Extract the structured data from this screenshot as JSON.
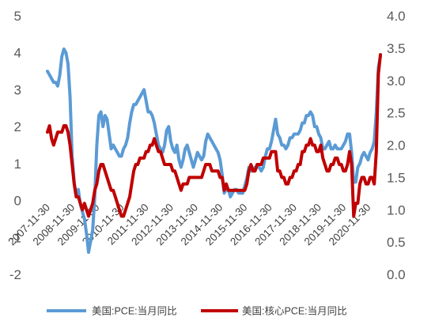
{
  "chart_data": {
    "type": "line",
    "x": [
      "2007-11-30",
      "2007-12-31",
      "2008-01-31",
      "2008-02-29",
      "2008-03-31",
      "2008-04-30",
      "2008-05-31",
      "2008-06-30",
      "2008-07-31",
      "2008-08-31",
      "2008-09-30",
      "2008-10-31",
      "2008-11-30",
      "2008-12-31",
      "2009-01-31",
      "2009-02-28",
      "2009-03-31",
      "2009-04-30",
      "2009-05-31",
      "2009-06-30",
      "2009-07-31",
      "2009-08-31",
      "2009-09-30",
      "2009-10-31",
      "2009-11-30",
      "2009-12-31",
      "2010-01-31",
      "2010-02-28",
      "2010-03-31",
      "2010-04-30",
      "2010-05-31",
      "2010-06-30",
      "2010-07-31",
      "2010-08-31",
      "2010-09-30",
      "2010-10-31",
      "2010-11-30",
      "2010-12-31",
      "2011-01-31",
      "2011-02-28",
      "2011-03-31",
      "2011-04-30",
      "2011-05-31",
      "2011-06-30",
      "2011-07-31",
      "2011-08-31",
      "2011-09-30",
      "2011-10-31",
      "2011-11-30",
      "2011-12-31",
      "2012-01-31",
      "2012-02-29",
      "2012-03-31",
      "2012-04-30",
      "2012-05-31",
      "2012-06-30",
      "2012-07-31",
      "2012-08-31",
      "2012-09-30",
      "2012-10-31",
      "2012-11-30",
      "2012-12-31",
      "2013-01-31",
      "2013-02-28",
      "2013-03-31",
      "2013-04-30",
      "2013-05-31",
      "2013-06-30",
      "2013-07-31",
      "2013-08-31",
      "2013-09-30",
      "2013-10-31",
      "2013-11-30",
      "2013-12-31",
      "2014-01-31",
      "2014-02-28",
      "2014-03-31",
      "2014-04-30",
      "2014-05-31",
      "2014-06-30",
      "2014-07-31",
      "2014-08-31",
      "2014-09-30",
      "2014-10-31",
      "2014-11-30",
      "2014-12-31",
      "2015-01-31",
      "2015-02-28",
      "2015-03-31",
      "2015-04-30",
      "2015-05-31",
      "2015-06-30",
      "2015-07-31",
      "2015-08-31",
      "2015-09-30",
      "2015-10-31",
      "2015-11-30",
      "2015-12-31",
      "2016-01-31",
      "2016-02-29",
      "2016-03-31",
      "2016-04-30",
      "2016-05-31",
      "2016-06-30",
      "2016-07-31",
      "2016-08-31",
      "2016-09-30",
      "2016-10-31",
      "2016-11-30",
      "2016-12-31",
      "2017-01-31",
      "2017-02-28",
      "2017-03-31",
      "2017-04-30",
      "2017-05-31",
      "2017-06-30",
      "2017-07-31",
      "2017-08-31",
      "2017-09-30",
      "2017-10-31",
      "2017-11-30",
      "2017-12-31",
      "2018-01-31",
      "2018-02-28",
      "2018-03-31",
      "2018-04-30",
      "2018-05-31",
      "2018-06-30",
      "2018-07-31",
      "2018-08-31",
      "2018-09-30",
      "2018-10-31",
      "2018-11-30",
      "2018-12-31",
      "2019-01-31",
      "2019-02-28",
      "2019-03-31",
      "2019-04-30",
      "2019-05-31",
      "2019-06-30",
      "2019-07-31",
      "2019-08-31",
      "2019-09-30",
      "2019-10-31",
      "2019-11-30",
      "2019-12-31",
      "2020-01-31",
      "2020-02-29",
      "2020-03-31",
      "2020-04-30",
      "2020-05-31",
      "2020-06-30",
      "2020-07-31",
      "2020-08-31",
      "2020-09-30",
      "2020-10-31",
      "2020-11-30",
      "2020-12-31",
      "2021-01-31",
      "2021-02-28",
      "2021-03-31",
      "2021-04-30",
      "2021-05-31"
    ],
    "x_tick_labels": [
      "2007-11-30",
      "2008-11-30",
      "2009-11-30",
      "2010-11-30",
      "2011-11-30",
      "2012-11-30",
      "2013-11-30",
      "2014-11-30",
      "2015-11-30",
      "2016-11-30",
      "2017-11-30",
      "2018-11-30",
      "2019-11-30",
      "2020-11-30"
    ],
    "series": [
      {
        "name": "美国:PCE:当月同比",
        "axis": "left",
        "color": "#5B9BD5",
        "values": [
          3.5,
          3.4,
          3.3,
          3.2,
          3.2,
          3.1,
          3.4,
          3.9,
          4.1,
          4.0,
          3.7,
          2.8,
          1.2,
          0.5,
          0.1,
          0.3,
          -0.1,
          -0.3,
          -0.5,
          -0.9,
          -1.4,
          -1.1,
          -0.8,
          0.1,
          1.5,
          2.3,
          2.4,
          2.0,
          2.3,
          2.2,
          1.8,
          1.4,
          1.5,
          1.4,
          1.3,
          1.2,
          1.2,
          1.4,
          1.5,
          1.7,
          2.1,
          2.4,
          2.6,
          2.6,
          2.7,
          2.8,
          2.9,
          3.0,
          2.7,
          2.4,
          2.4,
          2.3,
          2.1,
          1.8,
          1.5,
          1.4,
          1.3,
          1.5,
          1.9,
          2.0,
          1.6,
          1.4,
          1.3,
          1.5,
          1.1,
          0.9,
          1.1,
          1.4,
          1.5,
          1.3,
          1.1,
          0.9,
          1.1,
          1.3,
          1.2,
          1.1,
          1.2,
          1.6,
          1.8,
          1.7,
          1.6,
          1.5,
          1.4,
          1.3,
          1.1,
          0.7,
          0.2,
          0.3,
          0.3,
          0.1,
          0.2,
          0.3,
          0.3,
          0.2,
          0.2,
          0.2,
          0.4,
          0.6,
          0.9,
          0.8,
          0.8,
          0.9,
          0.9,
          0.9,
          0.8,
          0.9,
          1.2,
          1.4,
          1.4,
          1.6,
          1.9,
          2.2,
          1.8,
          1.7,
          1.5,
          1.5,
          1.4,
          1.5,
          1.7,
          1.7,
          1.8,
          1.8,
          1.8,
          1.9,
          2.1,
          2.1,
          2.3,
          2.3,
          2.4,
          2.3,
          2.0,
          2.0,
          1.8,
          1.7,
          1.4,
          1.4,
          1.5,
          1.6,
          1.4,
          1.4,
          1.5,
          1.4,
          1.4,
          1.4,
          1.5,
          1.6,
          1.8,
          1.8,
          1.3,
          0.5,
          0.5,
          0.9,
          1.0,
          1.2,
          1.3,
          1.2,
          1.1,
          1.3,
          1.4,
          1.6,
          2.4,
          3.6,
          3.9
        ]
      },
      {
        "name": "美国:核心PCE:当月同比",
        "axis": "right",
        "color": "#C00000",
        "values": [
          2.2,
          2.3,
          2.1,
          2.0,
          2.1,
          2.2,
          2.2,
          2.2,
          2.3,
          2.3,
          2.2,
          2.0,
          1.7,
          1.4,
          1.2,
          1.2,
          1.1,
          1.0,
          1.1,
          1.0,
          0.9,
          1.0,
          1.1,
          1.3,
          1.4,
          1.6,
          1.7,
          1.7,
          1.6,
          1.5,
          1.4,
          1.3,
          1.3,
          1.2,
          1.1,
          1.0,
          0.9,
          0.9,
          1.0,
          1.1,
          1.2,
          1.4,
          1.6,
          1.7,
          1.7,
          1.8,
          1.8,
          1.8,
          1.9,
          1.9,
          2.0,
          2.0,
          2.1,
          2.0,
          1.9,
          1.9,
          1.8,
          1.7,
          1.7,
          1.7,
          1.7,
          1.6,
          1.6,
          1.5,
          1.4,
          1.3,
          1.4,
          1.4,
          1.4,
          1.5,
          1.5,
          1.5,
          1.5,
          1.5,
          1.5,
          1.5,
          1.6,
          1.7,
          1.7,
          1.7,
          1.6,
          1.6,
          1.6,
          1.6,
          1.5,
          1.5,
          1.3,
          1.4,
          1.3,
          1.3,
          1.3,
          1.3,
          1.3,
          1.3,
          1.3,
          1.3,
          1.3,
          1.4,
          1.6,
          1.7,
          1.6,
          1.6,
          1.7,
          1.7,
          1.7,
          1.8,
          1.8,
          1.8,
          1.8,
          1.9,
          1.9,
          1.9,
          1.6,
          1.6,
          1.5,
          1.5,
          1.4,
          1.4,
          1.5,
          1.5,
          1.6,
          1.6,
          1.7,
          1.7,
          1.9,
          1.9,
          2.0,
          2.0,
          2.1,
          2.0,
          2.0,
          1.9,
          1.9,
          2.0,
          1.8,
          1.7,
          1.6,
          1.6,
          1.7,
          1.7,
          1.8,
          1.8,
          1.7,
          1.7,
          1.6,
          1.6,
          1.7,
          1.9,
          1.7,
          0.9,
          1.1,
          1.1,
          1.4,
          1.5,
          1.5,
          1.4,
          1.4,
          1.5,
          1.5,
          1.4,
          1.9,
          3.1,
          3.4
        ]
      }
    ],
    "y_left": {
      "ticks": [
        "5",
        "4",
        "3",
        "2",
        "1",
        "0",
        "-1",
        "-2"
      ],
      "lim": [
        -2,
        5
      ]
    },
    "y_right": {
      "ticks": [
        "4.0",
        "3.5",
        "3.0",
        "2.5",
        "2.0",
        "1.5",
        "1.0",
        "0.5",
        "0.0"
      ],
      "lim": [
        0,
        4
      ]
    },
    "grid": false,
    "legend": "bottom"
  }
}
